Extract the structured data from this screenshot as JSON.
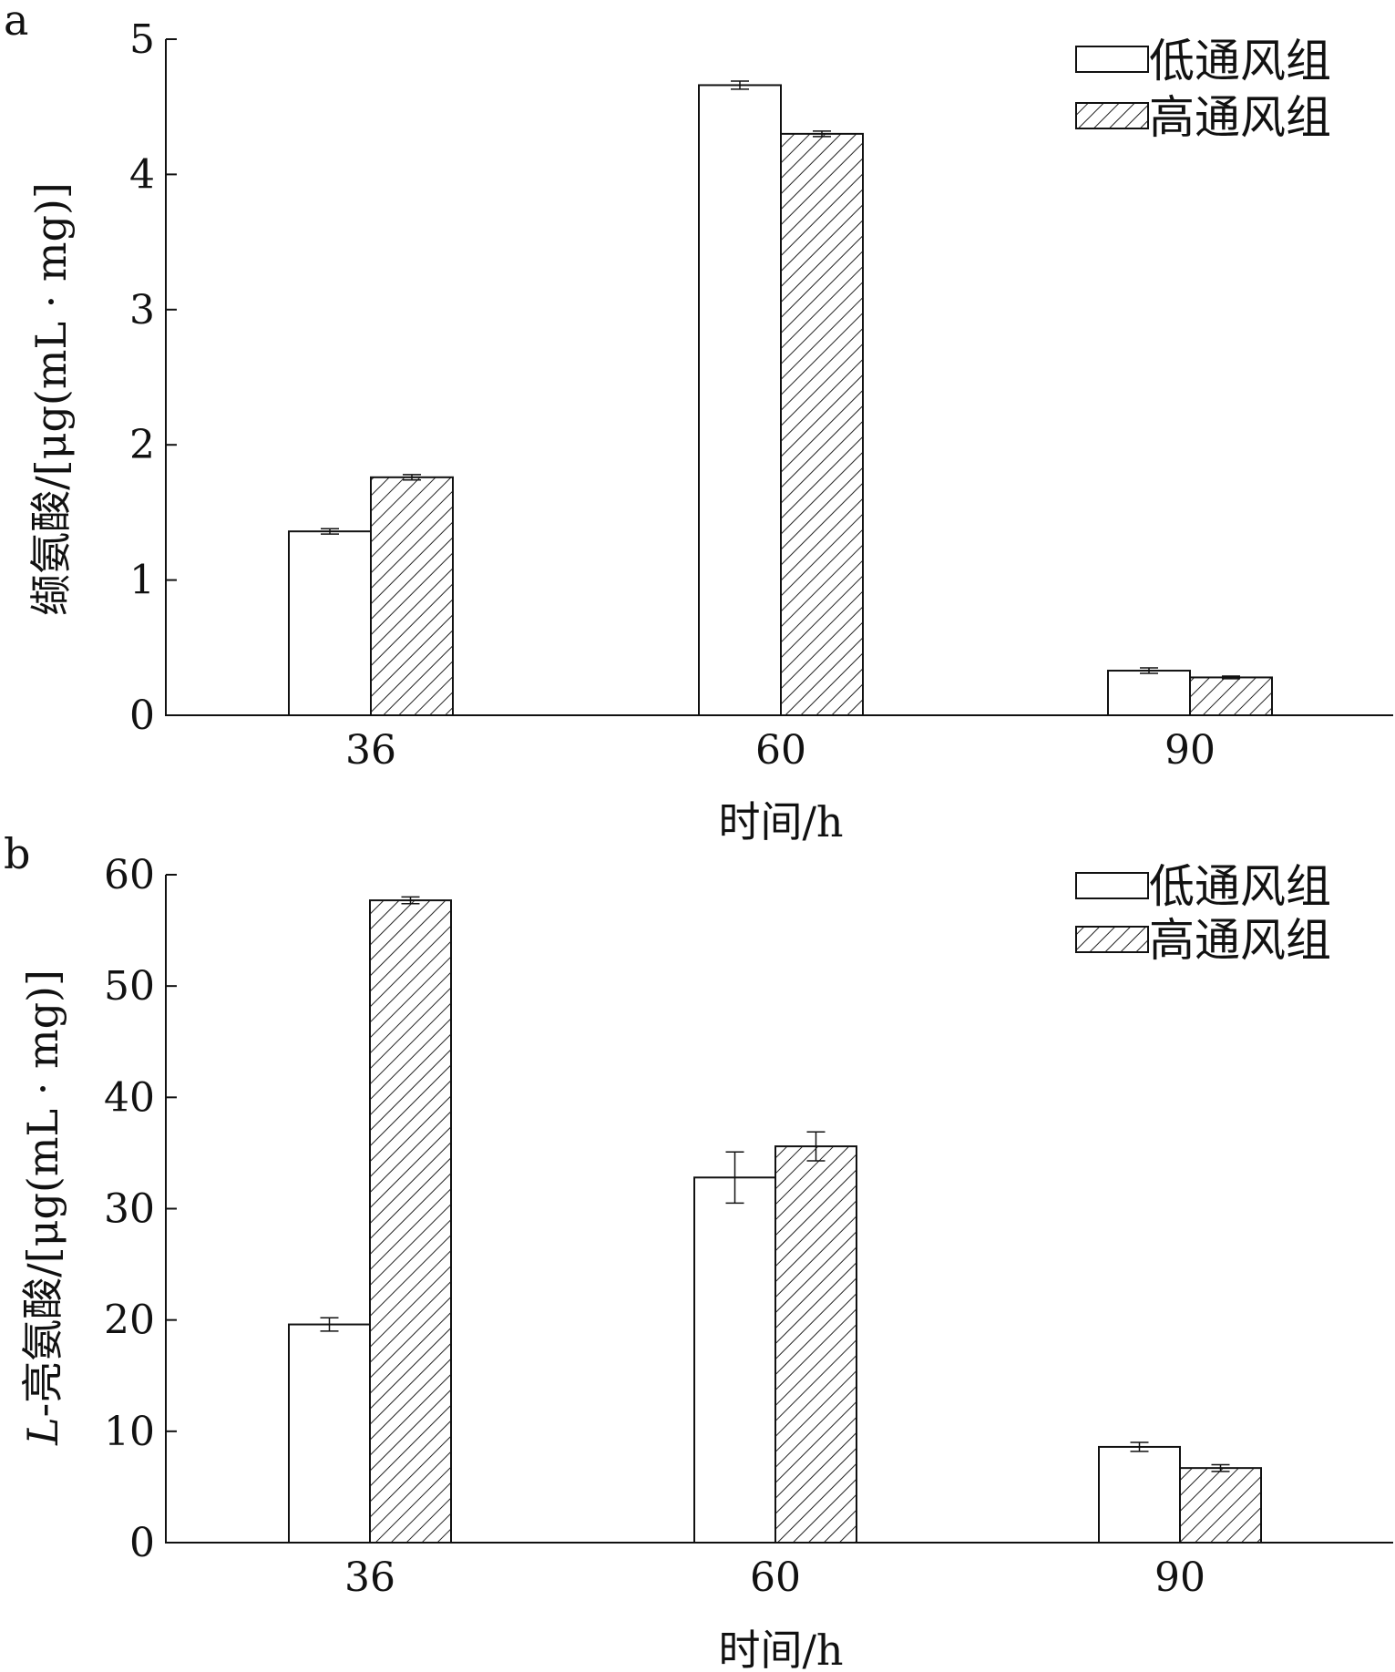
{
  "chart_data": [
    {
      "type": "bar",
      "panel_label": "a",
      "categories": [
        "36",
        "60",
        "90"
      ],
      "series": [
        {
          "name": "低通风组",
          "values": [
            1.36,
            4.66,
            0.33
          ],
          "errors": [
            0.02,
            0.03,
            0.02
          ],
          "fill": "white"
        },
        {
          "name": "高通风组",
          "values": [
            1.76,
            4.3,
            0.28
          ],
          "errors": [
            0.02,
            0.02,
            0.01
          ],
          "fill": "hatched"
        }
      ],
      "xlabel": "时间/h",
      "ylabel": "缬氨酸/[μg(mL · mg)]",
      "ylim": [
        0,
        5
      ],
      "yticks": [
        "0",
        "1",
        "2",
        "3",
        "4",
        "5"
      ],
      "legend_position": "top-right",
      "grid": false
    },
    {
      "type": "bar",
      "panel_label": "b",
      "categories": [
        "36",
        "60",
        "90"
      ],
      "series": [
        {
          "name": "低通风组",
          "values": [
            19.6,
            32.8,
            8.6
          ],
          "errors": [
            0.6,
            2.3,
            0.4
          ],
          "fill": "white"
        },
        {
          "name": "高通风组",
          "values": [
            57.7,
            35.6,
            6.7
          ],
          "errors": [
            0.3,
            1.3,
            0.3
          ],
          "fill": "hatched"
        }
      ],
      "xlabel": "时间/h",
      "ylabel_prefix": "L",
      "ylabel": "-亮氨酸/[μg(mL · mg)]",
      "ylim": [
        0,
        60
      ],
      "yticks": [
        "0",
        "10",
        "20",
        "30",
        "40",
        "50",
        "60"
      ],
      "legend_position": "top-right",
      "grid": false
    }
  ]
}
